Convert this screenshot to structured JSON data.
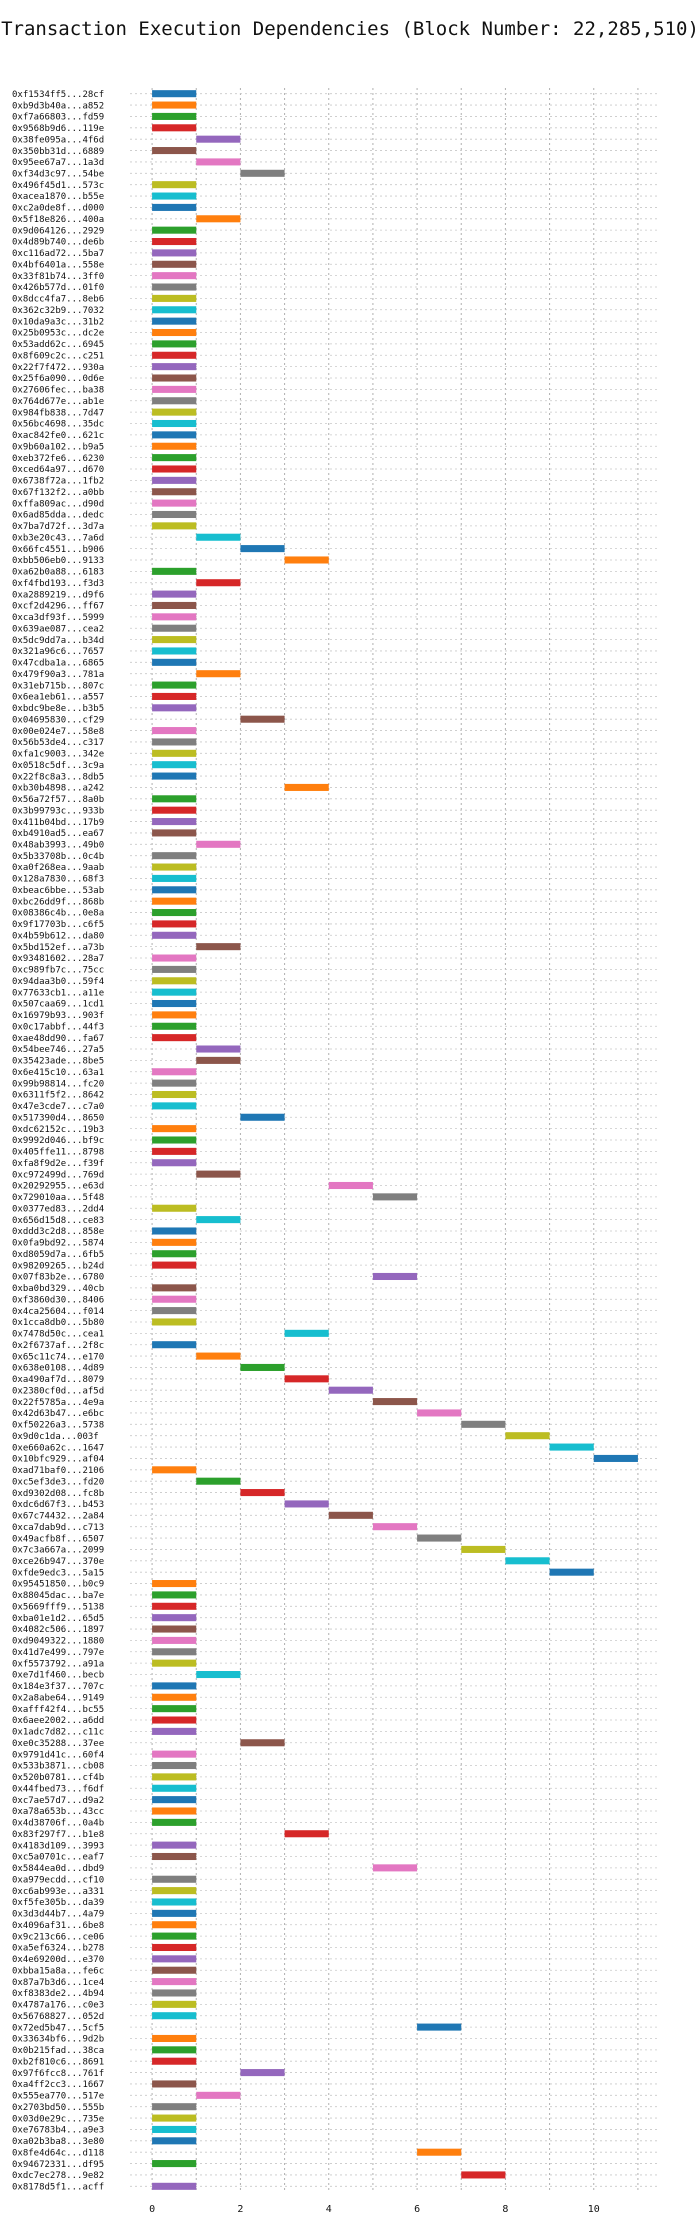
{
  "chart_data": {
    "type": "gantt",
    "title": "Transaction Execution Dependencies (Block Number: 22,285,510)",
    "xlabel": "",
    "ylabel": "",
    "xlim": [
      -0.5,
      11.5
    ],
    "xticks": [
      0,
      2,
      4,
      6,
      8,
      10
    ],
    "grid": true,
    "colors": [
      "#1f77b4",
      "#ff7f0e",
      "#2ca02c",
      "#d62728",
      "#9467bd",
      "#8c564b",
      "#e377c2",
      "#7f7f7f",
      "#bcbd22",
      "#17becf"
    ],
    "transactions": [
      {
        "label": "0xf1534ff5...28cf",
        "start": 0
      },
      {
        "label": "0xb9d3b40a...a852",
        "start": 0
      },
      {
        "label": "0xf7a66803...fd59",
        "start": 0
      },
      {
        "label": "0x9568b9d6...119e",
        "start": 0
      },
      {
        "label": "0x38fe095a...4f6d",
        "start": 1
      },
      {
        "label": "0x350bb31d...6889",
        "start": 0
      },
      {
        "label": "0x95ee67a7...1a3d",
        "start": 1
      },
      {
        "label": "0xf34d3c97...54be",
        "start": 2
      },
      {
        "label": "0x496f45d1...573c",
        "start": 0
      },
      {
        "label": "0xacea1870...b55e",
        "start": 0
      },
      {
        "label": "0xc2a0de8f...d000",
        "start": 0
      },
      {
        "label": "0x5f18e826...400a",
        "start": 1
      },
      {
        "label": "0x9d064126...2929",
        "start": 0
      },
      {
        "label": "0x4d89b740...de6b",
        "start": 0
      },
      {
        "label": "0xc116ad72...5ba7",
        "start": 0
      },
      {
        "label": "0x4bf6401a...558e",
        "start": 0
      },
      {
        "label": "0x33f81b74...3ff0",
        "start": 0
      },
      {
        "label": "0x426b577d...01f0",
        "start": 0
      },
      {
        "label": "0x8dcc4fa7...8eb6",
        "start": 0
      },
      {
        "label": "0x362c32b9...7032",
        "start": 0
      },
      {
        "label": "0x10da9a3c...31b2",
        "start": 0
      },
      {
        "label": "0x25b0953c...dc2e",
        "start": 0
      },
      {
        "label": "0x53add62c...6945",
        "start": 0
      },
      {
        "label": "0x8f609c2c...c251",
        "start": 0
      },
      {
        "label": "0x22f7f472...930a",
        "start": 0
      },
      {
        "label": "0x25f6a090...0d6e",
        "start": 0
      },
      {
        "label": "0x27606fec...ba38",
        "start": 0
      },
      {
        "label": "0x764d677e...ab1e",
        "start": 0
      },
      {
        "label": "0x984fb838...7d47",
        "start": 0
      },
      {
        "label": "0x56bc4698...35dc",
        "start": 0
      },
      {
        "label": "0xac842fe0...621c",
        "start": 0
      },
      {
        "label": "0x9b60a102...b9a5",
        "start": 0
      },
      {
        "label": "0xeb372fe6...6230",
        "start": 0
      },
      {
        "label": "0xced64a97...d670",
        "start": 0
      },
      {
        "label": "0x6738f72a...1fb2",
        "start": 0
      },
      {
        "label": "0x67f132f2...a0bb",
        "start": 0
      },
      {
        "label": "0xffa809ac...d90d",
        "start": 0
      },
      {
        "label": "0x6ad85dda...dedc",
        "start": 0
      },
      {
        "label": "0x7ba7d72f...3d7a",
        "start": 0
      },
      {
        "label": "0xb3e20c43...7a6d",
        "start": 1
      },
      {
        "label": "0x66fc4551...b906",
        "start": 2
      },
      {
        "label": "0xbb506eb0...9133",
        "start": 3
      },
      {
        "label": "0xa62b0a88...6183",
        "start": 0
      },
      {
        "label": "0xf4fbd193...f3d3",
        "start": 1
      },
      {
        "label": "0xa2889219...d9f6",
        "start": 0
      },
      {
        "label": "0xcf2d4296...ff67",
        "start": 0
      },
      {
        "label": "0xca3df93f...5999",
        "start": 0
      },
      {
        "label": "0x639ae087...cea2",
        "start": 0
      },
      {
        "label": "0x5dc9dd7a...b34d",
        "start": 0
      },
      {
        "label": "0x321a96c6...7657",
        "start": 0
      },
      {
        "label": "0x47cdba1a...6865",
        "start": 0
      },
      {
        "label": "0x479f90a3...781a",
        "start": 1
      },
      {
        "label": "0x31eb715b...807c",
        "start": 0
      },
      {
        "label": "0x6ea1eb61...a557",
        "start": 0
      },
      {
        "label": "0xbdc9be8e...b3b5",
        "start": 0
      },
      {
        "label": "0x04695830...cf29",
        "start": 2
      },
      {
        "label": "0x00e024e7...58e8",
        "start": 0
      },
      {
        "label": "0x56b53de4...c317",
        "start": 0
      },
      {
        "label": "0xfa1c9003...342e",
        "start": 0
      },
      {
        "label": "0x0518c5df...3c9a",
        "start": 0
      },
      {
        "label": "0x22f8c8a3...8db5",
        "start": 0
      },
      {
        "label": "0xb30b4898...a242",
        "start": 3
      },
      {
        "label": "0x56a72f57...8a0b",
        "start": 0
      },
      {
        "label": "0x3b99793c...933b",
        "start": 0
      },
      {
        "label": "0x411b04bd...17b9",
        "start": 0
      },
      {
        "label": "0xb4910ad5...ea67",
        "start": 0
      },
      {
        "label": "0x48ab3993...49b0",
        "start": 1
      },
      {
        "label": "0x5b33708b...0c4b",
        "start": 0
      },
      {
        "label": "0xa0f268ea...9aab",
        "start": 0
      },
      {
        "label": "0x128a7830...68f3",
        "start": 0
      },
      {
        "label": "0xbeac6bbe...53ab",
        "start": 0
      },
      {
        "label": "0xbc26dd9f...868b",
        "start": 0
      },
      {
        "label": "0x08386c4b...0e8a",
        "start": 0
      },
      {
        "label": "0x9f17703b...c6f5",
        "start": 0
      },
      {
        "label": "0x4b59b612...da80",
        "start": 0
      },
      {
        "label": "0x5bd152ef...a73b",
        "start": 1
      },
      {
        "label": "0x93481602...28a7",
        "start": 0
      },
      {
        "label": "0xc989fb7c...75cc",
        "start": 0
      },
      {
        "label": "0x94daa3b0...59f4",
        "start": 0
      },
      {
        "label": "0x77633cb1...a11e",
        "start": 0
      },
      {
        "label": "0x507caa69...1cd1",
        "start": 0
      },
      {
        "label": "0x16979b93...903f",
        "start": 0
      },
      {
        "label": "0x0c17abbf...44f3",
        "start": 0
      },
      {
        "label": "0xae48dd90...fa67",
        "start": 0
      },
      {
        "label": "0x54bee746...27a5",
        "start": 1
      },
      {
        "label": "0x35423ade...8be5",
        "start": 1
      },
      {
        "label": "0x6e415c10...63a1",
        "start": 0
      },
      {
        "label": "0x99b98814...fc20",
        "start": 0
      },
      {
        "label": "0x6311f5f2...8642",
        "start": 0
      },
      {
        "label": "0x47e3cde7...c7a0",
        "start": 0
      },
      {
        "label": "0x517390d4...8650",
        "start": 2
      },
      {
        "label": "0xdc62152c...19b3",
        "start": 0
      },
      {
        "label": "0x9992d046...bf9c",
        "start": 0
      },
      {
        "label": "0x405ffe11...8798",
        "start": 0
      },
      {
        "label": "0xfa8f9d2e...f39f",
        "start": 0
      },
      {
        "label": "0xc972499d...769d",
        "start": 1
      },
      {
        "label": "0x20292955...e63d",
        "start": 4
      },
      {
        "label": "0x729010aa...5f48",
        "start": 5
      },
      {
        "label": "0x0377ed83...2dd4",
        "start": 0
      },
      {
        "label": "0x656d15d8...ce83",
        "start": 1
      },
      {
        "label": "0xddd3c2d8...858e",
        "start": 0
      },
      {
        "label": "0x0fa9bd92...5874",
        "start": 0
      },
      {
        "label": "0xd8059d7a...6fb5",
        "start": 0
      },
      {
        "label": "0x98209265...b24d",
        "start": 0
      },
      {
        "label": "0x07f83b2e...6780",
        "start": 5
      },
      {
        "label": "0xba0bd329...40cb",
        "start": 0
      },
      {
        "label": "0xf3860d30...8406",
        "start": 0
      },
      {
        "label": "0x4ca25604...f014",
        "start": 0
      },
      {
        "label": "0x1cca8db0...5b80",
        "start": 0
      },
      {
        "label": "0x7478d50c...cea1",
        "start": 3
      },
      {
        "label": "0x2f6737af...2f8c",
        "start": 0
      },
      {
        "label": "0x65c11c74...e170",
        "start": 1
      },
      {
        "label": "0x638e0108...4d89",
        "start": 2
      },
      {
        "label": "0xa490af7d...8079",
        "start": 3
      },
      {
        "label": "0x2380cf0d...af5d",
        "start": 4
      },
      {
        "label": "0x22f5785a...4e9a",
        "start": 5
      },
      {
        "label": "0x42d63b47...e6bc",
        "start": 6
      },
      {
        "label": "0xf50226a3...5738",
        "start": 7
      },
      {
        "label": "0x9d0c1da...003f",
        "start": 8
      },
      {
        "label": "0xe660a62c...1647",
        "start": 9
      },
      {
        "label": "0x10bfc929...af04",
        "start": 10
      },
      {
        "label": "0xad71baf0...2106",
        "start": 0
      },
      {
        "label": "0xc5ef3de3...fd20",
        "start": 1
      },
      {
        "label": "0xd9302d08...fc8b",
        "start": 2
      },
      {
        "label": "0xdc6d67f3...b453",
        "start": 3
      },
      {
        "label": "0x67c74432...2a84",
        "start": 4
      },
      {
        "label": "0xca7dab9d...c713",
        "start": 5
      },
      {
        "label": "0x49acfb8f...6507",
        "start": 6
      },
      {
        "label": "0x7c3a667a...2099",
        "start": 7
      },
      {
        "label": "0xce26b947...370e",
        "start": 8
      },
      {
        "label": "0xfde9edc3...5a15",
        "start": 9
      },
      {
        "label": "0x95451850...b0c9",
        "start": 0
      },
      {
        "label": "0x88045dac...ba7e",
        "start": 0
      },
      {
        "label": "0x5669fff9...5138",
        "start": 0
      },
      {
        "label": "0xba01e1d2...65d5",
        "start": 0
      },
      {
        "label": "0x4082c506...1897",
        "start": 0
      },
      {
        "label": "0xd9049322...1880",
        "start": 0
      },
      {
        "label": "0x41d7e499...797e",
        "start": 0
      },
      {
        "label": "0xf5573792...a91a",
        "start": 0
      },
      {
        "label": "0xe7d1f460...becb",
        "start": 1
      },
      {
        "label": "0x184e3f37...707c",
        "start": 0
      },
      {
        "label": "0x2a8abe64...9149",
        "start": 0
      },
      {
        "label": "0xafff42f4...bc55",
        "start": 0
      },
      {
        "label": "0x6aee2002...a6dd",
        "start": 0
      },
      {
        "label": "0x1adc7d82...c11c",
        "start": 0
      },
      {
        "label": "0xe0c35288...37ee",
        "start": 2
      },
      {
        "label": "0x9791d41c...60f4",
        "start": 0
      },
      {
        "label": "0x533b3871...cb08",
        "start": 0
      },
      {
        "label": "0x520b0781...cf4b",
        "start": 0
      },
      {
        "label": "0x44fbed73...f6df",
        "start": 0
      },
      {
        "label": "0xc7ae57d7...d9a2",
        "start": 0
      },
      {
        "label": "0xa78a653b...43cc",
        "start": 0
      },
      {
        "label": "0x4d38706f...0a4b",
        "start": 0
      },
      {
        "label": "0x83f297f7...b1e8",
        "start": 3
      },
      {
        "label": "0x4183d109...3993",
        "start": 0
      },
      {
        "label": "0xc5a0701c...eaf7",
        "start": 0
      },
      {
        "label": "0x5844ea0d...dbd9",
        "start": 5
      },
      {
        "label": "0xa979ecdd...cf10",
        "start": 0
      },
      {
        "label": "0xc6ab993e...a331",
        "start": 0
      },
      {
        "label": "0xf5fe305b...da39",
        "start": 0
      },
      {
        "label": "0x3d3d44b7...4a79",
        "start": 0
      },
      {
        "label": "0x4096af31...6be8",
        "start": 0
      },
      {
        "label": "0x9c213c66...ce06",
        "start": 0
      },
      {
        "label": "0xa5ef6324...b278",
        "start": 0
      },
      {
        "label": "0x4e69200d...e370",
        "start": 0
      },
      {
        "label": "0xbba15a8a...fe6c",
        "start": 0
      },
      {
        "label": "0x87a7b3d6...1ce4",
        "start": 0
      },
      {
        "label": "0xf8383de2...4b94",
        "start": 0
      },
      {
        "label": "0x4787a176...c0e3",
        "start": 0
      },
      {
        "label": "0x56768827...052d",
        "start": 0
      },
      {
        "label": "0x72ed5b47...5cf5",
        "start": 6
      },
      {
        "label": "0x33634bf6...9d2b",
        "start": 0
      },
      {
        "label": "0x0b215fad...38ca",
        "start": 0
      },
      {
        "label": "0xb2f810c6...8691",
        "start": 0
      },
      {
        "label": "0x97f6fcc8...761f",
        "start": 2
      },
      {
        "label": "0xa4ff2cc3...1667",
        "start": 0
      },
      {
        "label": "0x555ea770...517e",
        "start": 1
      },
      {
        "label": "0x2703bd50...555b",
        "start": 0
      },
      {
        "label": "0x03d0e29c...735e",
        "start": 0
      },
      {
        "label": "0xe76783b4...a9e3",
        "start": 0
      },
      {
        "label": "0xa02b3ba8...3e80",
        "start": 0
      },
      {
        "label": "0x8fe4d64c...d118",
        "start": 6
      },
      {
        "label": "0x94672331...df95",
        "start": 0
      },
      {
        "label": "0xdc7ec278...9e82",
        "start": 7
      },
      {
        "label": "0x8178d5f1...acff",
        "start": 0
      }
    ]
  }
}
